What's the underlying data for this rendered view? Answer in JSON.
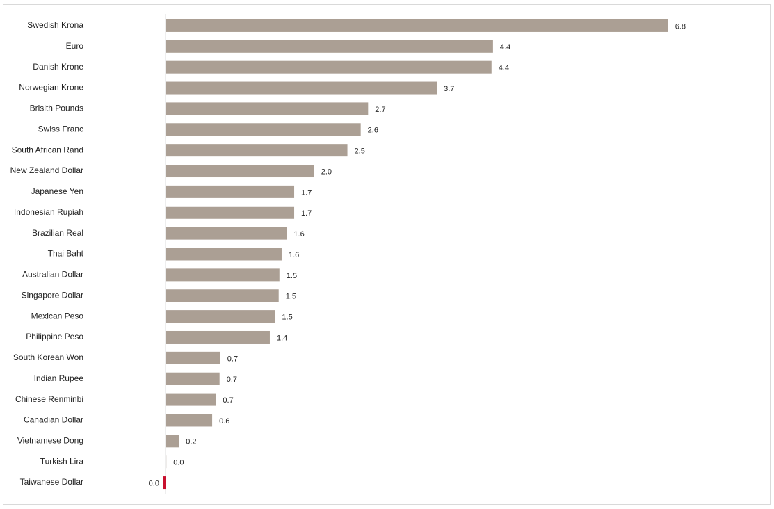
{
  "chart_data": {
    "type": "barh",
    "categories": [
      "Swedish Krona",
      "Euro",
      "Danish Krone",
      "Norwegian Krone",
      "Brisith Pounds",
      "Swiss Franc",
      "South African Rand",
      "New Zealand Dollar",
      "Japanese Yen",
      "Indonesian Rupiah",
      "Brazilian Real",
      "Thai Baht",
      "Australian Dollar",
      "Singapore Dollar",
      "Mexican Peso",
      "Philippine Peso",
      "South Korean Won",
      "Indian Rupee",
      "Chinese Renminbi",
      "Canadian Dollar",
      "Vietnamese Dong",
      "Turkish Lira",
      "Taiwanese Dollar"
    ],
    "values": [
      6.8,
      4.43,
      4.41,
      3.67,
      2.74,
      2.64,
      2.46,
      2.01,
      1.74,
      1.74,
      1.64,
      1.57,
      1.54,
      1.53,
      1.48,
      1.41,
      0.74,
      0.73,
      0.68,
      0.63,
      0.18,
      0.01,
      -0.03
    ],
    "value_labels": [
      "6.8",
      "4.4",
      "4.4",
      "3.7",
      "2.7",
      "2.6",
      "2.5",
      "2.0",
      "1.7",
      "1.7",
      "1.6",
      "1.6",
      "1.5",
      "1.5",
      "1.5",
      "1.4",
      "0.7",
      "0.7",
      "0.7",
      "0.6",
      "0.2",
      "0.0",
      "0.0"
    ],
    "color": "#ab9f94",
    "negative_color": "#c8102e",
    "xlim": [
      -0.5,
      7.0
    ]
  }
}
